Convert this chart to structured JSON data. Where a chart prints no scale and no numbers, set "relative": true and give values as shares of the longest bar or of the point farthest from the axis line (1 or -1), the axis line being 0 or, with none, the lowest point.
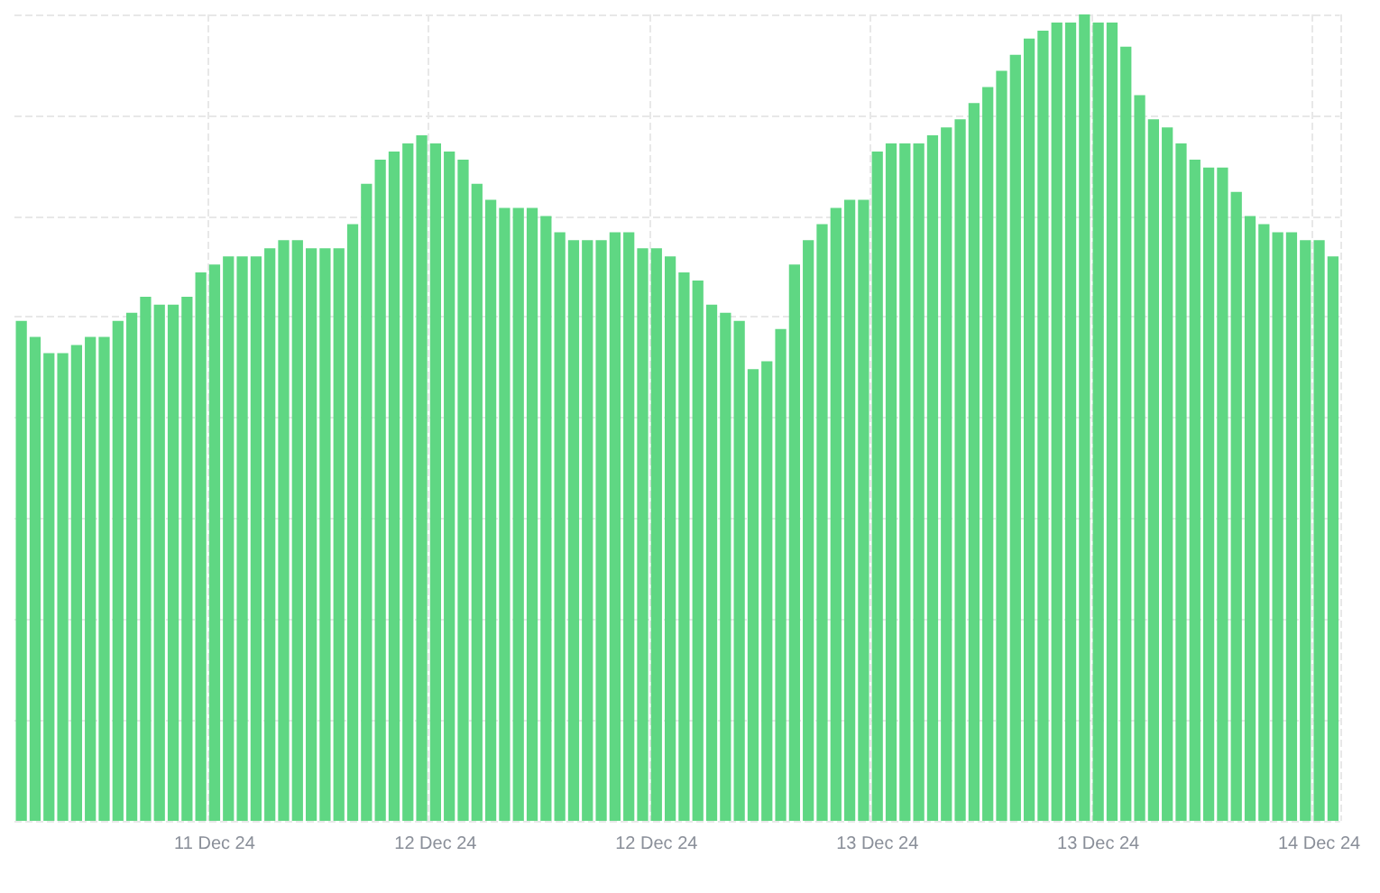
{
  "chart_data": {
    "type": "bar",
    "relative": true,
    "color": "#5fd783",
    "grid": true,
    "categories": [
      null,
      null,
      null,
      null,
      null,
      null,
      null,
      null,
      null,
      null,
      null,
      null,
      null,
      null,
      "11 Dec 24",
      null,
      null,
      null,
      null,
      null,
      null,
      null,
      null,
      null,
      null,
      null,
      null,
      null,
      null,
      null,
      "12 Dec 24",
      null,
      null,
      null,
      null,
      null,
      null,
      null,
      null,
      null,
      null,
      null,
      null,
      null,
      null,
      null,
      "12 Dec 24",
      null,
      null,
      null,
      null,
      null,
      null,
      null,
      null,
      null,
      null,
      null,
      null,
      null,
      null,
      null,
      "13 Dec 24",
      null,
      null,
      null,
      null,
      null,
      null,
      null,
      null,
      null,
      null,
      null,
      null,
      null,
      null,
      null,
      "13 Dec 24",
      null,
      null,
      null,
      null,
      null,
      null,
      null,
      null,
      null,
      null,
      null,
      null,
      null,
      null,
      null,
      "14 Dec 24",
      null
    ],
    "values": [
      0.62,
      0.6,
      0.58,
      0.58,
      0.59,
      0.6,
      0.6,
      0.62,
      0.63,
      0.65,
      0.64,
      0.64,
      0.65,
      0.68,
      0.69,
      0.7,
      0.7,
      0.7,
      0.71,
      0.72,
      0.72,
      0.71,
      0.71,
      0.71,
      0.74,
      0.79,
      0.82,
      0.83,
      0.84,
      0.85,
      0.84,
      0.83,
      0.82,
      0.79,
      0.77,
      0.76,
      0.76,
      0.76,
      0.75,
      0.73,
      0.72,
      0.72,
      0.72,
      0.73,
      0.73,
      0.71,
      0.71,
      0.7,
      0.68,
      0.67,
      0.64,
      0.63,
      0.62,
      0.56,
      0.57,
      0.61,
      0.69,
      0.72,
      0.74,
      0.76,
      0.77,
      0.77,
      0.83,
      0.84,
      0.84,
      0.84,
      0.85,
      0.86,
      0.87,
      0.89,
      0.91,
      0.93,
      0.95,
      0.97,
      0.98,
      0.99,
      0.99,
      1,
      0.99,
      0.99,
      0.96,
      0.9,
      0.87,
      0.86,
      0.84,
      0.82,
      0.81,
      0.81,
      0.78,
      0.75,
      0.74,
      0.73,
      0.73,
      0.72,
      0.72,
      0.7
    ]
  }
}
